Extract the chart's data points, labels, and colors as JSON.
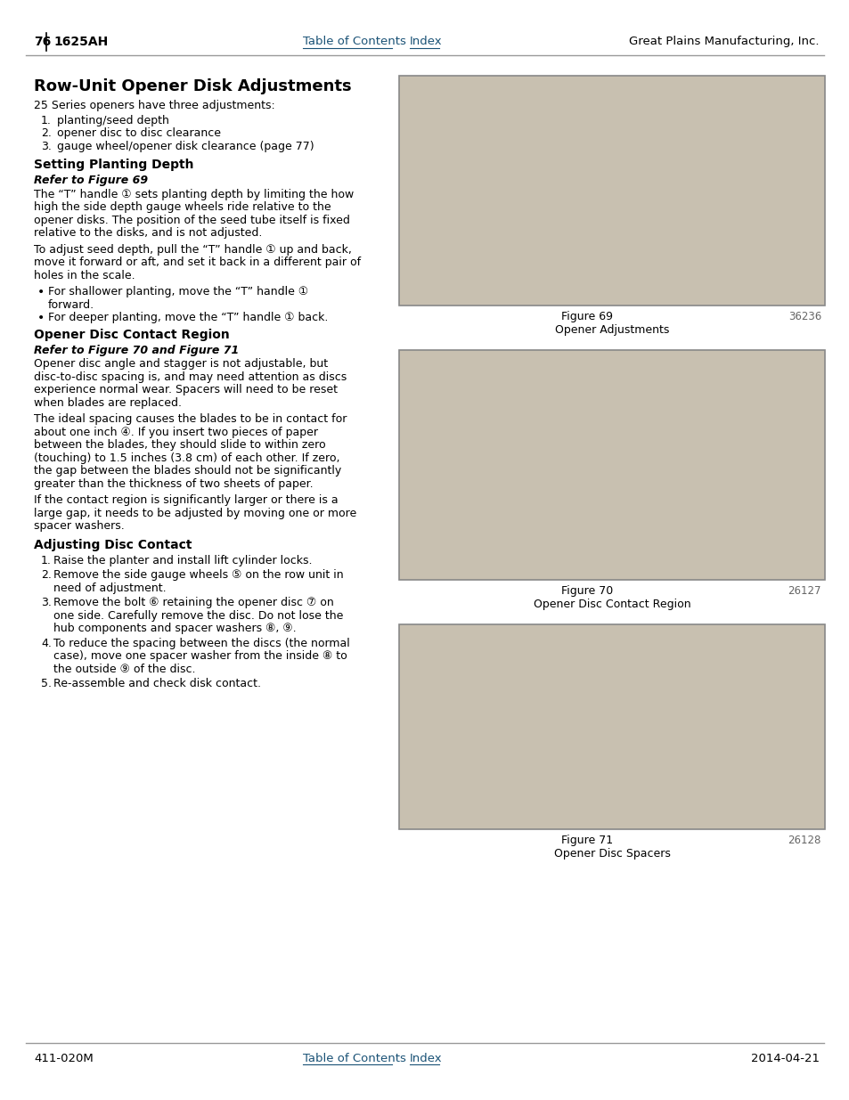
{
  "page_number": "76",
  "product": "1625AH",
  "company": "Great Plains Manufacturing, Inc.",
  "footer_left": "411-020M",
  "footer_right": "2014-04-21",
  "toc_link": "Table of Contents",
  "index_link": "Index",
  "link_color": "#1a5276",
  "main_title": "Row-Unit Opener Disk Adjustments",
  "intro_text": "25 Series openers have three adjustments:",
  "numbered_list": [
    "planting/seed depth",
    "opener disc to disc clearance",
    "gauge wheel/opener disk clearance (page 77)"
  ],
  "section1_title": "Setting Planting Depth",
  "section1_ref": "Refer to Figure 69",
  "section1_para1": "The “T” handle ① sets planting depth by limiting the how\nhigh the side depth gauge wheels ride relative to the\nopener disks. The position of the seed tube itself is fixed\nrelative to the disks, and is not adjusted.",
  "section1_para2": "To adjust seed depth, pull the “T” handle ① up and back,\nmove it forward or aft, and set it back in a different pair of\nholes in the scale.",
  "section1_bullets": [
    "For shallower planting, move the “T” handle ①\n    forward.",
    "For deeper planting, move the “T” handle ① back."
  ],
  "section2_title": "Opener Disc Contact Region",
  "section2_ref": "Refer to Figure 70 and Figure 71",
  "section2_para1": "Opener disc angle and stagger is not adjustable, but\ndisc-to-disc spacing is, and may need attention as discs\nexperience normal wear. Spacers will need to be reset\nwhen blades are replaced.",
  "section2_para2": "The ideal spacing causes the blades to be in contact for\nabout one inch ④. If you insert two pieces of paper\nbetween the blades, they should slide to within zero\n(touching) to 1.5 inches (3.8 cm) of each other. If zero,\nthe gap between the blades should not be significantly\ngreater than the thickness of two sheets of paper.",
  "section2_para3": "If the contact region is significantly larger or there is a\nlarge gap, it needs to be adjusted by moving one or more\nspacer washers.",
  "section3_title": "Adjusting Disc Contact",
  "section3_list": [
    "Raise the planter and install lift cylinder locks.",
    "Remove the side gauge wheels ⑤ on the row unit in\nneed of adjustment.",
    "Remove the bolt ⑥ retaining the opener disc ⑦ on\none side. Carefully remove the disc. Do not lose the\nhub components and spacer washers ⑧, ⑨.",
    "To reduce the spacing between the discs (the normal\ncase), move one spacer washer from the inside ⑧ to\nthe outside ⑨ of the disc.",
    "Re-assemble and check disk contact."
  ],
  "fig69_caption": "Figure 69",
  "fig69_sub": "Opener Adjustments",
  "fig69_num": "36236",
  "fig70_caption": "Figure 70",
  "fig70_sub": "Opener Disc Contact Region",
  "fig70_num": "26127",
  "fig71_caption": "Figure 71",
  "fig71_sub": "Opener Disc Spacers",
  "fig71_num": "26128",
  "fig_bg_color": "#c8c0b0",
  "fig_border_color": "#888888",
  "page_bg": "#ffffff",
  "text_color": "#000000",
  "fig_caption_color": "#666666"
}
